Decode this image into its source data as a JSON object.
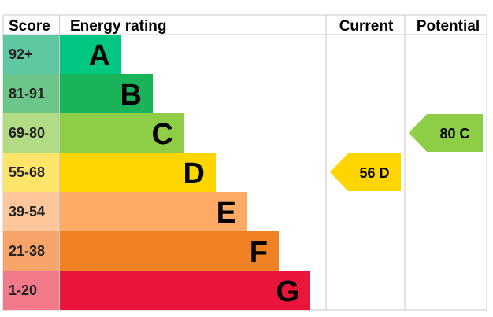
{
  "chart_data": {
    "type": "bar",
    "headers": {
      "score": "Score",
      "rating": "Energy rating",
      "current": "Current",
      "potential": "Potential"
    },
    "bands": [
      {
        "range": "92+",
        "letter": "A",
        "score_color": "#5ec8a0",
        "color": "#00c781"
      },
      {
        "range": "81-91",
        "letter": "B",
        "score_color": "#6cc689",
        "color": "#19b459"
      },
      {
        "range": "69-80",
        "letter": "C",
        "score_color": "#b2dc84",
        "color": "#8dce46"
      },
      {
        "range": "55-68",
        "letter": "D",
        "score_color": "#ffe46a",
        "color": "#ffd500"
      },
      {
        "range": "39-54",
        "letter": "E",
        "score_color": "#fdc79b",
        "color": "#fcaa65"
      },
      {
        "range": "21-38",
        "letter": "F",
        "score_color": "#f6a46a",
        "color": "#ef8023"
      },
      {
        "range": "1-20",
        "letter": "G",
        "score_color": "#f07a8a",
        "color": "#e9153b"
      }
    ],
    "current": {
      "value": 56,
      "letter": "D",
      "label": "56 D",
      "color": "#ffd500"
    },
    "potential": {
      "value": 80,
      "letter": "C",
      "label": "80 C",
      "color": "#8dce46"
    }
  }
}
